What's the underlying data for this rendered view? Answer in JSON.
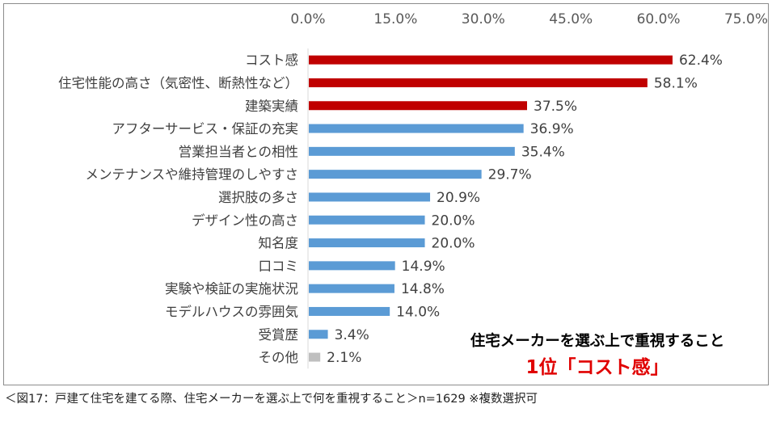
{
  "chart_data": {
    "type": "bar",
    "orientation": "horizontal",
    "title": "住宅メーカーを選ぶ上で重視すること",
    "categories": [
      "コスト感",
      "住宅性能の高さ（気密性、断熱性など）",
      "建築実績",
      "アフターサービス・保証の充実",
      "営業担当者との相性",
      "メンテナンスや維持管理のしやすさ",
      "選択肢の多さ",
      "デザイン性の高さ",
      "知名度",
      "口コミ",
      "実験や検証の実施状況",
      "モデルハウスの雰囲気",
      "受賞歴",
      "その他"
    ],
    "values": [
      62.4,
      58.1,
      37.5,
      36.9,
      35.4,
      29.7,
      20.9,
      20.0,
      20.0,
      14.9,
      14.8,
      14.0,
      3.4,
      2.1
    ],
    "value_labels": [
      "62.4%",
      "58.1%",
      "37.5%",
      "36.9%",
      "35.4%",
      "29.7%",
      "20.9%",
      "20.0%",
      "20.0%",
      "14.9%",
      "14.8%",
      "14.0%",
      "3.4%",
      "2.1%"
    ],
    "bar_colors": [
      "#c00000",
      "#c00000",
      "#c00000",
      "#5b9bd5",
      "#5b9bd5",
      "#5b9bd5",
      "#5b9bd5",
      "#5b9bd5",
      "#5b9bd5",
      "#5b9bd5",
      "#5b9bd5",
      "#5b9bd5",
      "#5b9bd5",
      "#bfbfbf"
    ],
    "xlim": [
      0,
      75
    ],
    "xticks": [
      0,
      15,
      30,
      45,
      60,
      75
    ],
    "xtick_labels": [
      "0.0%",
      "15.0%",
      "30.0%",
      "45.0%",
      "60.0%",
      "75.0%"
    ],
    "xaxis_position": "top",
    "grid": false,
    "xlabel": "",
    "ylabel": ""
  },
  "highlight": {
    "subtitle": "住宅メーカーを選ぶ上で重視すること",
    "headline": "1位「コスト感」",
    "headline_color": "#e00000"
  },
  "caption": "＜図17：戸建て住宅を建てる際、住宅メーカーを選ぶ上で何を重視すること＞n=1629 ※複数選択可"
}
